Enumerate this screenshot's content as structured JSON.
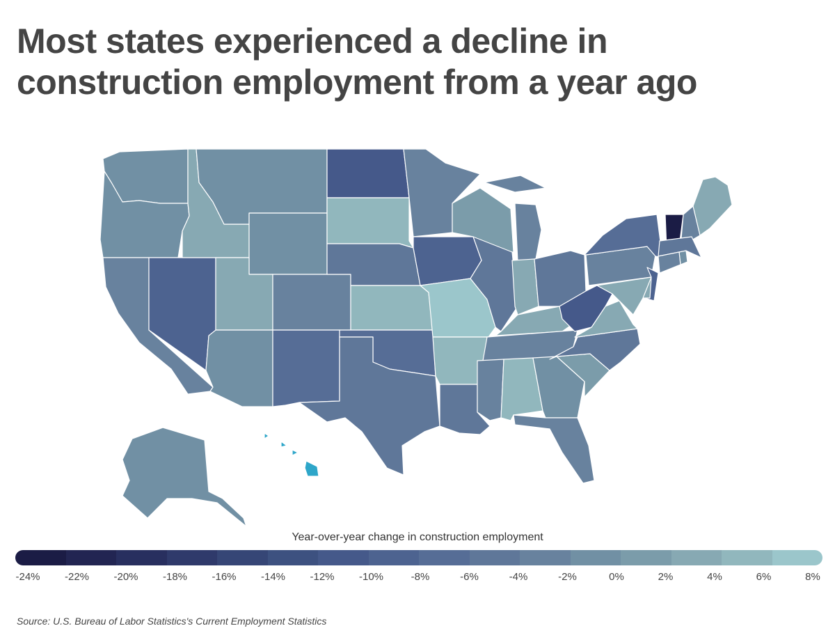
{
  "title": "Most states experienced a decline in construction employment from a year ago",
  "legend": {
    "title": "Year-over-year change in construction employment",
    "ticks": [
      "-24%",
      "-22%",
      "-20%",
      "-18%",
      "-16%",
      "-14%",
      "-12%",
      "-10%",
      "-8%",
      "-6%",
      "-4%",
      "-2%",
      "0%",
      "2%",
      "4%",
      "6%",
      "8%"
    ],
    "range": [
      -24,
      8
    ],
    "colors": [
      "#1b1c45",
      "#222552",
      "#282f5f",
      "#2f3a6b",
      "#364676",
      "#3d5180",
      "#45598a",
      "#4d6390",
      "#566d96",
      "#5f7799",
      "#68829e",
      "#7190a4",
      "#7b9caa",
      "#87a9b3",
      "#91b7bd",
      "#9bc6cb"
    ]
  },
  "source": "Source: U.S. Bureau of Labor Statistics's Current Employment Statistics",
  "map_data": {
    "metric": "Year-over-year change in construction employment (%)",
    "states": {
      "WA": -1,
      "OR": -2,
      "CA": -4,
      "NV": -9,
      "ID": 3,
      "MT": -1,
      "WY": -1,
      "UT": 3,
      "AZ": -1,
      "CO": -4,
      "NM": -8,
      "ND": -11,
      "SD": 4,
      "NE": -5,
      "KS": 4,
      "OK": -8,
      "TX": -6,
      "MN": -4,
      "IA": -10,
      "MO": 6,
      "AR": 4,
      "LA": -5,
      "WI": 1,
      "IL": -5,
      "MI": -3,
      "IN": 3,
      "OH": -5,
      "KY": 2,
      "TN": -4,
      "MS": -4,
      "AL": 5,
      "GA": -2,
      "FL": -4,
      "SC": 0,
      "NC": -5,
      "VA": 3,
      "WV": -11,
      "PA": -4,
      "NY": -7,
      "VT": -24,
      "NH": -3,
      "ME": 2,
      "MA": -6,
      "RI": -2,
      "CT": -4,
      "NJ": -9,
      "DE": 2,
      "MD": 2,
      "AK": -1,
      "HI": 10
    }
  }
}
